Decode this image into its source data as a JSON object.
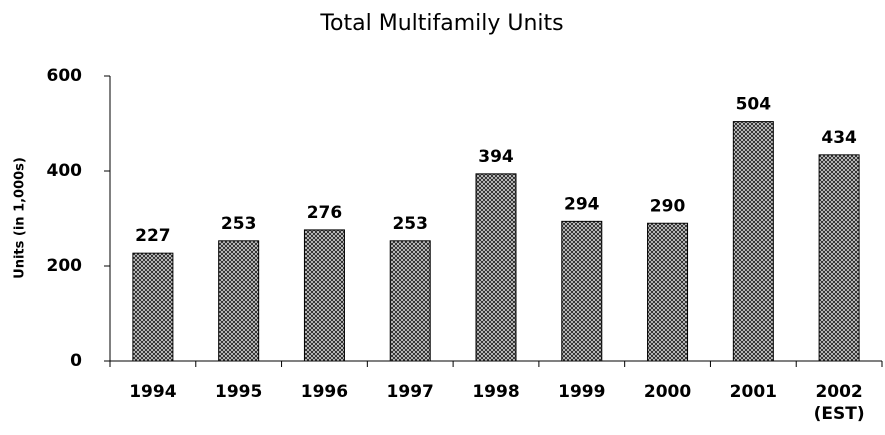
{
  "chart_data": {
    "type": "bar",
    "title": "Total Multifamily Units",
    "y_label": "Units (in 1,000s)",
    "categories": [
      "1994",
      "1995",
      "1996",
      "1997",
      "1998",
      "1999",
      "2000",
      "2001",
      "2002\n(EST)"
    ],
    "values": [
      227,
      253,
      276,
      253,
      394,
      294,
      290,
      504,
      434
    ],
    "color": "#555555",
    "ylim": [
      0,
      600
    ],
    "yticks": [
      0,
      200,
      400,
      600
    ],
    "grid": false
  }
}
